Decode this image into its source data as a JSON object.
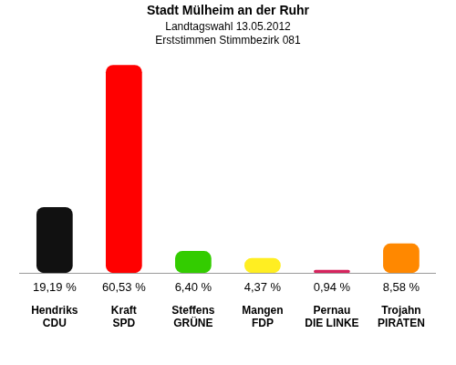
{
  "chart_data": {
    "type": "bar",
    "title": "Stadt Mülheim an der Ruhr",
    "subtitle": [
      "Landtagswahl 13.05.2012",
      "Erststimmen Stimmbezirk 081"
    ],
    "categories": [
      [
        "Hendriks",
        "CDU"
      ],
      [
        "Kraft",
        "SPD"
      ],
      [
        "Steffens",
        "GRÜNE"
      ],
      [
        "Mangen",
        "FDP"
      ],
      [
        "Pernau",
        "DIE LINKE"
      ],
      [
        "Trojahn",
        "PIRATEN"
      ]
    ],
    "values": [
      19.19,
      60.53,
      6.4,
      4.37,
      0.94,
      8.58
    ],
    "value_labels": [
      "19,19 %",
      "60,53 %",
      "6,40 %",
      "4,37 %",
      "0,94 %",
      "8,58 %"
    ],
    "colors": [
      "#111111",
      "#ff0000",
      "#33cc00",
      "#ffee22",
      "#d6245e",
      "#ff8800"
    ],
    "ylim": [
      0,
      62
    ],
    "data_labels": true,
    "tick_labels": "x",
    "grid": false
  }
}
